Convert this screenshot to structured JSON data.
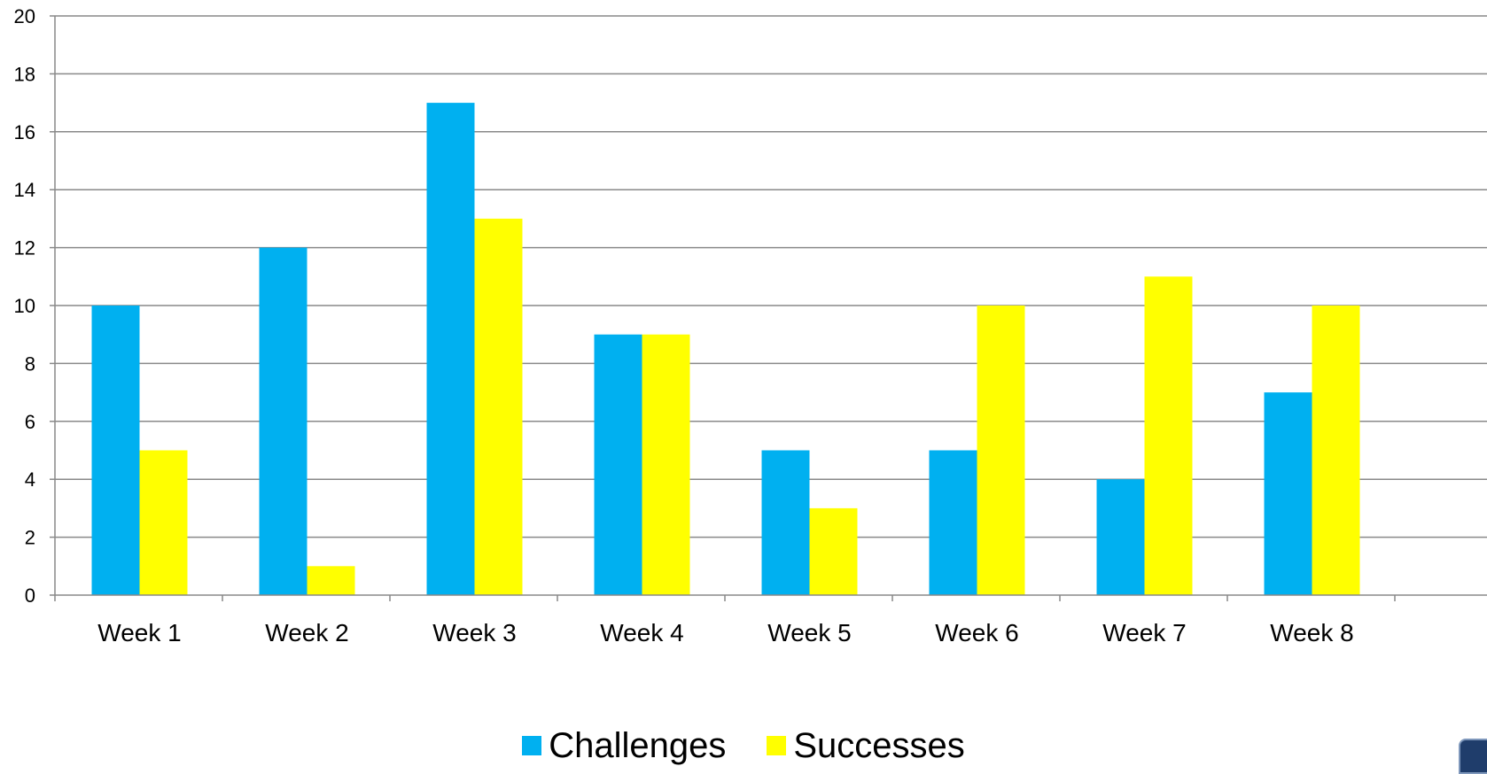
{
  "chart_data": {
    "type": "bar",
    "categories": [
      "Week 1",
      "Week 2",
      "Week 3",
      "Week 4",
      "Week 5",
      "Week 6",
      "Week 7",
      "Week 8"
    ],
    "series": [
      {
        "name": "Challenges",
        "color": "#00b0f0",
        "values": [
          10,
          12,
          17,
          9,
          5,
          5,
          4,
          7
        ]
      },
      {
        "name": "Successes",
        "color": "#ffff00",
        "values": [
          5,
          1,
          13,
          9,
          3,
          10,
          11,
          10
        ]
      }
    ],
    "ylim": [
      0,
      20
    ],
    "yticks": [
      "0",
      "2",
      "4",
      "6",
      "8",
      "10",
      "12",
      "14",
      "16",
      "18",
      "20"
    ],
    "grid": true,
    "legend_position": "bottom"
  }
}
